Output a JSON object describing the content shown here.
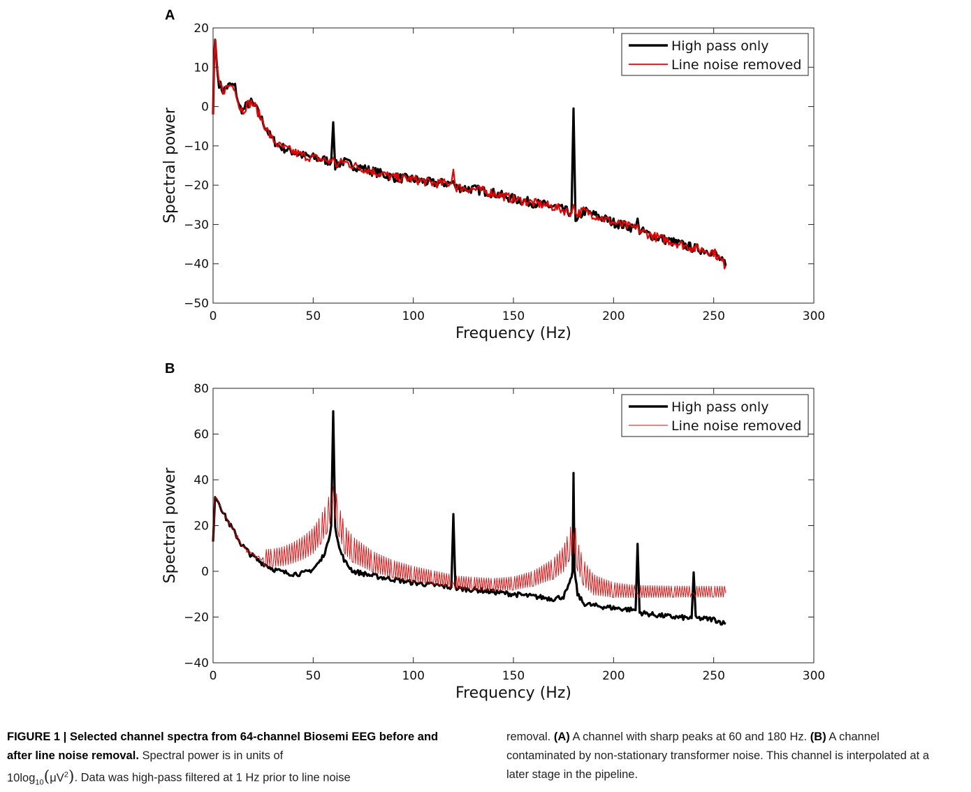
{
  "figure": {
    "panels": [
      {
        "letter": "A"
      },
      {
        "letter": "B"
      }
    ]
  },
  "caption": {
    "figure_label": "FIGURE 1 | Selected channel spectra from 64-channel Biosemi EEG before and after line noise removal.",
    "text_1": "Spectral power is in units of",
    "formula_prefix": "10log",
    "formula_sub": "10",
    "formula_open": "(",
    "formula_mu": "μV",
    "formula_sup": "2",
    "formula_close": ")",
    "text_2": ". Data was high-pass filtered at 1 Hz prior to line noise",
    "text_3": "removal.",
    "label_a": "(A)",
    "text_a": "A channel with sharp peaks at 60 and 180 Hz.",
    "label_b": "(B)",
    "text_b": "A channel contaminated by non-stationary transformer noise. This channel is interpolated at a later stage in the pipeline."
  },
  "chart_data": [
    {
      "panel": "A",
      "type": "line",
      "xlabel": "Frequency (Hz)",
      "ylabel": "Spectral power",
      "xlim": [
        0,
        300
      ],
      "ylim": [
        -50,
        20
      ],
      "xticks": [
        0,
        50,
        100,
        150,
        200,
        250,
        300
      ],
      "yticks": [
        20,
        10,
        0,
        -10,
        -20,
        -30,
        -40,
        -50
      ],
      "grid": false,
      "legend": "top-right",
      "series": [
        {
          "name": "High pass only",
          "color": "#000000",
          "x": [
            0,
            0.5,
            1,
            2,
            3,
            5,
            7,
            9,
            11,
            13,
            15,
            17,
            19,
            21,
            23,
            25,
            27,
            29,
            31,
            33,
            35,
            40,
            45,
            50,
            55,
            59,
            60,
            61,
            65,
            70,
            80,
            90,
            100,
            110,
            119,
            120,
            121,
            130,
            140,
            150,
            160,
            170,
            179,
            180,
            181,
            185,
            190,
            200,
            211,
            212,
            213,
            220,
            230,
            240,
            250,
            256
          ],
          "y": [
            -2,
            12,
            17,
            10,
            6,
            4,
            5,
            5.5,
            5,
            0,
            -1,
            0.5,
            1,
            0,
            -2,
            -4,
            -6,
            -8,
            -9,
            -10,
            -10.5,
            -11.5,
            -12.5,
            -13,
            -13.5,
            -14,
            -4,
            -15,
            -14,
            -15,
            -16.5,
            -18,
            -18.5,
            -19.5,
            -19.5,
            -19,
            -20.5,
            -21,
            -22,
            -23.5,
            -24.5,
            -25.5,
            -27,
            -0.5,
            -30,
            -26.5,
            -27.5,
            -29.5,
            -31,
            -28.5,
            -31.5,
            -33,
            -34.5,
            -36,
            -37,
            -40.5
          ]
        },
        {
          "name": "Line noise removed",
          "color": "#ee0000",
          "x": [
            0,
            0.5,
            1,
            2,
            3,
            5,
            7,
            9,
            11,
            13,
            15,
            17,
            19,
            21,
            23,
            25,
            27,
            29,
            31,
            33,
            35,
            40,
            45,
            50,
            55,
            59,
            60,
            61,
            65,
            70,
            80,
            90,
            100,
            110,
            119,
            120,
            121,
            130,
            140,
            150,
            160,
            170,
            179,
            180,
            181,
            185,
            190,
            200,
            211,
            212,
            213,
            220,
            230,
            240,
            250,
            256
          ],
          "y": [
            -2,
            12,
            17,
            10,
            6,
            4,
            5,
            5.5,
            5,
            0,
            -1,
            0.5,
            1,
            0,
            -2,
            -4,
            -6,
            -8,
            -9,
            -10,
            -10.5,
            -11.5,
            -12.5,
            -13,
            -13.5,
            -14,
            -13,
            -15,
            -14,
            -15,
            -16.5,
            -18,
            -18.5,
            -19.5,
            -19.5,
            -16,
            -20.5,
            -21,
            -22,
            -23.5,
            -24.5,
            -25.5,
            -27,
            -25,
            -27.5,
            -26.5,
            -27.5,
            -29.5,
            -31,
            -30,
            -31.5,
            -33,
            -34.5,
            -36,
            -37,
            -40.5
          ]
        }
      ]
    },
    {
      "panel": "B",
      "type": "line",
      "xlabel": "Frequency (Hz)",
      "ylabel": "Spectral power",
      "xlim": [
        0,
        300
      ],
      "ylim": [
        -40,
        80
      ],
      "xticks": [
        0,
        50,
        100,
        150,
        200,
        250,
        300
      ],
      "yticks": [
        80,
        60,
        40,
        20,
        0,
        -20,
        -40
      ],
      "grid": false,
      "legend": "top-right",
      "series": [
        {
          "name": "High pass only",
          "color": "#000000",
          "x": [
            0,
            1,
            3,
            6,
            10,
            14,
            18,
            22,
            26,
            30,
            35,
            40,
            45,
            50,
            54,
            57,
            59,
            60,
            61,
            63,
            66,
            70,
            80,
            90,
            100,
            110,
            119,
            120,
            121,
            130,
            140,
            150,
            160,
            170,
            175,
            178,
            179.5,
            180,
            180.5,
            182,
            185,
            190,
            200,
            211,
            212,
            213,
            220,
            230,
            239,
            240,
            241,
            250,
            256
          ],
          "y": [
            13,
            33,
            30,
            24,
            18,
            12,
            8,
            5,
            3,
            1,
            -0.5,
            -1,
            -1,
            1,
            5,
            11,
            20,
            70,
            20,
            10,
            4,
            0,
            -2,
            -3.5,
            -5,
            -6,
            -7,
            25,
            -7.5,
            -8,
            -9,
            -10,
            -11,
            -12,
            -11,
            -6,
            0,
            43,
            0,
            -10,
            -14,
            -15,
            -16,
            -17,
            12,
            -18,
            -19,
            -20,
            -20.5,
            -0.5,
            -20.5,
            -21,
            -23
          ]
        },
        {
          "name": "Line noise removed",
          "color": "#ee0000",
          "x": [
            0,
            1,
            3,
            6,
            10,
            14,
            18,
            22,
            26,
            30,
            35,
            40,
            45,
            50,
            54,
            57,
            59,
            60,
            61,
            63,
            66,
            70,
            80,
            90,
            100,
            110,
            119,
            120,
            121,
            130,
            140,
            150,
            160,
            170,
            175,
            178,
            179.5,
            180,
            180.5,
            182,
            185,
            190,
            200,
            211,
            212,
            213,
            220,
            230,
            239,
            240,
            241,
            250,
            256
          ],
          "y": [
            13,
            33,
            30,
            24,
            18,
            12,
            8,
            6,
            5,
            5,
            5.5,
            7,
            9,
            12,
            17,
            22,
            28,
            37,
            28,
            20,
            12,
            8,
            3,
            0,
            -2,
            -3.5,
            -5,
            -5,
            -5.5,
            -6,
            -6.5,
            -6,
            -4,
            0,
            4,
            10,
            13,
            17,
            13,
            5,
            -2,
            -7,
            -9,
            -9.5,
            -9.5,
            -9.5,
            -9.5,
            -9.5,
            -9.5,
            -9.5,
            -9.5,
            -9.5,
            -9.5
          ]
        }
      ]
    }
  ]
}
